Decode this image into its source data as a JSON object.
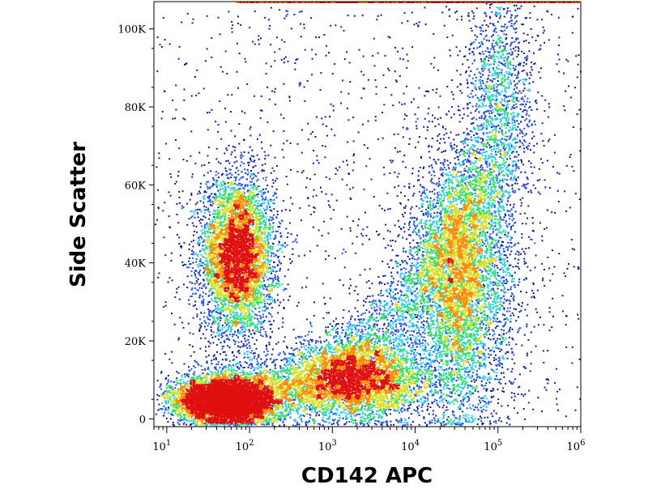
{
  "chart_data": {
    "type": "scatter",
    "style": "density-dot-plot",
    "xlabel": "CD142 APC",
    "ylabel": "Side Scatter",
    "x_scale": "log",
    "xlim": [
      7,
      1000000
    ],
    "ylim": [
      -2000,
      107000
    ],
    "x_tick_labels": [
      {
        "value": 10,
        "base": "10",
        "exp": "1"
      },
      {
        "value": 100,
        "base": "10",
        "exp": "2"
      },
      {
        "value": 1000,
        "base": "10",
        "exp": "3"
      },
      {
        "value": 10000,
        "base": "10",
        "exp": "4"
      },
      {
        "value": 100000,
        "base": "10",
        "exp": "5"
      },
      {
        "value": 1000000,
        "base": "10",
        "exp": "6"
      }
    ],
    "y_ticks": [
      {
        "value": 0,
        "label": "0"
      },
      {
        "value": 20000,
        "label": "20K"
      },
      {
        "value": 40000,
        "label": "40K"
      },
      {
        "value": 60000,
        "label": "60K"
      },
      {
        "value": 80000,
        "label": "80K"
      },
      {
        "value": 100000,
        "label": "100K"
      }
    ],
    "populations": [
      {
        "center_x": 70,
        "center_y": 42000,
        "spread_log_x": 0.22,
        "spread_y": 10000,
        "relative_density": "high"
      },
      {
        "center_x": 50,
        "center_y": 5000,
        "spread_log_x": 0.3,
        "spread_y": 3000,
        "relative_density": "very high"
      },
      {
        "center_x": 2000,
        "center_y": 10000,
        "spread_log_x": 0.45,
        "spread_y": 5000,
        "relative_density": "medium"
      },
      {
        "center_x": 35000,
        "center_y": 35000,
        "spread_log_x": 0.3,
        "spread_y": 17000,
        "relative_density": "medium"
      },
      {
        "center_x": 100000,
        "center_y": 80000,
        "spread_log_x": 0.2,
        "spread_y": 15000,
        "relative_density": "low"
      }
    ],
    "density_colors": [
      "#0a1aa8",
      "#1e50ff",
      "#22d0e8",
      "#30e060",
      "#d6e020",
      "#ff8a00",
      "#e01010"
    ]
  }
}
